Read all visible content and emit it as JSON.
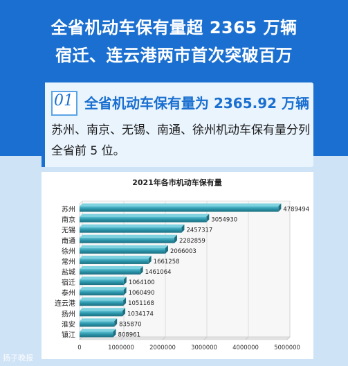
{
  "header": {
    "line1": "全省机动车保有量超 2365 万辆",
    "line2": "宿迁、连云港两市首次突破百万"
  },
  "card": {
    "badge": "01",
    "title": "全省机动车保有量为 2365.92 万辆",
    "line1": "苏州、南京、无锡、南通、徐州机动车保有量分列",
    "line2": "全省前 5 位。"
  },
  "watermark": "扬子晚报",
  "colors": {
    "header_bg": "#1a6fd0",
    "bar": "#2a93a8",
    "bar_dark": "#1d6f80"
  },
  "chart_data": {
    "type": "bar",
    "orientation": "horizontal",
    "title": "2021年各市机动车保有量",
    "categories": [
      "苏州",
      "南京",
      "无锡",
      "南通",
      "徐州",
      "常州",
      "盐城",
      "宿迁",
      "泰州",
      "连云港",
      "扬州",
      "淮安",
      "镇江"
    ],
    "values": [
      4789494,
      3054930,
      2457317,
      2282859,
      2066003,
      1661258,
      1461064,
      1064100,
      1060490,
      1051168,
      1034174,
      835870,
      808961
    ],
    "xlim": [
      0,
      5000000
    ],
    "xticks": [
      "0",
      "1000000",
      "2000000",
      "3000000",
      "4000000",
      "5000000"
    ],
    "tick_values": [
      0,
      1000000,
      2000000,
      3000000,
      4000000,
      5000000
    ],
    "data_labels": [
      "4789494",
      "3054930",
      "2457317",
      "2282859",
      "2066003",
      "1661258",
      "1461064",
      "1064100",
      "1060490",
      "1051168",
      "1034174",
      "835870",
      "808961"
    ],
    "grid": true
  }
}
